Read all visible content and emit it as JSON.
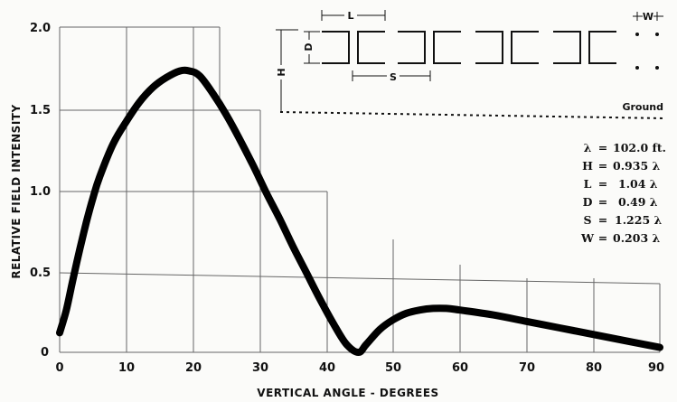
{
  "chart_data": {
    "type": "line",
    "title": "",
    "xlabel": "VERTICAL ANGLE - DEGREES",
    "ylabel": "RELATIVE FIELD INTENSITY",
    "xlim": [
      0,
      90
    ],
    "ylim": [
      0,
      2.0
    ],
    "x_ticks": [
      "0",
      "10",
      "20",
      "30",
      "40",
      "50",
      "60",
      "70",
      "80",
      "90"
    ],
    "y_ticks": [
      "0",
      "0.5",
      "1.0",
      "1.5",
      "2.0"
    ],
    "grid": true,
    "series": [
      {
        "x": [
          0,
          1,
          2,
          3,
          4,
          5,
          6,
          8,
          10,
          12,
          14,
          16,
          18,
          19.5,
          21,
          23,
          25,
          27,
          29,
          31,
          33,
          35,
          37,
          39,
          41,
          43,
          44.8,
          46,
          48,
          50,
          52,
          54,
          56,
          58,
          60,
          65,
          70,
          75,
          80,
          85,
          90
        ],
        "y": [
          0.12,
          0.26,
          0.45,
          0.63,
          0.8,
          0.95,
          1.08,
          1.28,
          1.42,
          1.54,
          1.63,
          1.69,
          1.73,
          1.73,
          1.7,
          1.59,
          1.46,
          1.31,
          1.15,
          0.98,
          0.82,
          0.65,
          0.49,
          0.33,
          0.18,
          0.05,
          0.0,
          0.05,
          0.14,
          0.2,
          0.24,
          0.26,
          0.27,
          0.27,
          0.26,
          0.23,
          0.19,
          0.15,
          0.11,
          0.07,
          0.03
        ]
      }
    ]
  },
  "diagram": {
    "dim_labels": {
      "L": "L",
      "D": "D",
      "S": "S",
      "H": "H",
      "W": "W"
    },
    "ground_label": "Ground"
  },
  "parameters": [
    {
      "name": "λ",
      "eq": "=",
      "value": "102.0 ft."
    },
    {
      "name": "H",
      "eq": "=",
      "value": "0.935 λ"
    },
    {
      "name": "L",
      "eq": "=",
      "value": "1.04 λ"
    },
    {
      "name": "D",
      "eq": "=",
      "value": "0.49 λ"
    },
    {
      "name": "S",
      "eq": "=",
      "value": "1.225 λ"
    },
    {
      "name": "W",
      "eq": "=",
      "value": "0.203 λ"
    }
  ]
}
